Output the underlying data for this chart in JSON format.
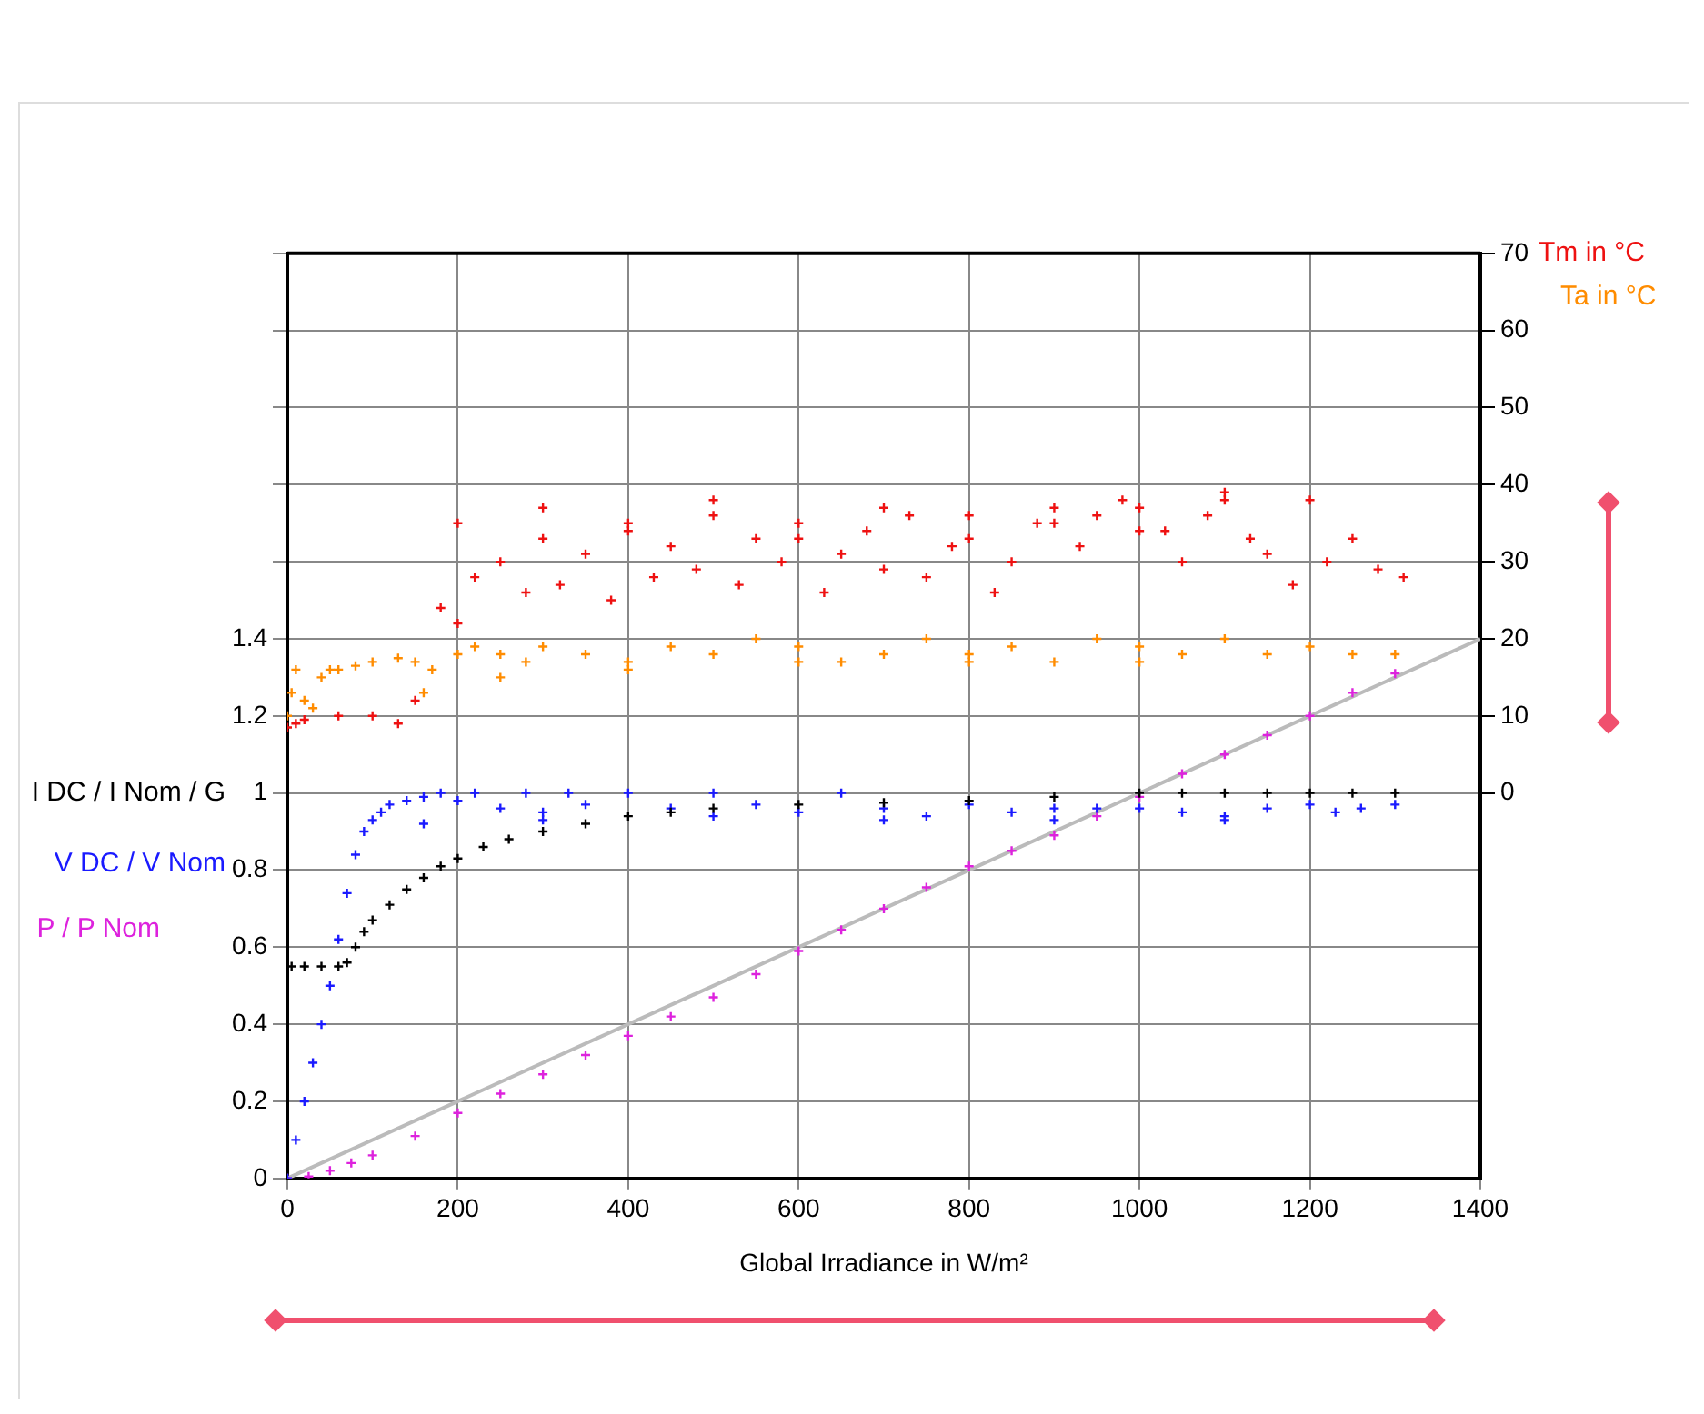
{
  "chart_data": {
    "type": "scatter",
    "xlabel": "Global Irradiance in W/m²",
    "xlim": [
      0,
      1400
    ],
    "xticks": [
      0,
      200,
      400,
      600,
      800,
      1000,
      1200,
      1400
    ],
    "ylim": [
      0,
      2.4
    ],
    "yticks": [
      0,
      0.2,
      0.4,
      0.6,
      0.8,
      1,
      1.2,
      1.4,
      {
        "value": 1.6,
        "label": null
      },
      {
        "value": 1.8,
        "label": null
      },
      {
        "value": 2,
        "label": null
      },
      {
        "value": 2.2,
        "label": null
      },
      {
        "value": 2.4,
        "label": null
      }
    ],
    "y2lim": [
      -50,
      70
    ],
    "y2ticks": [
      0,
      10,
      20,
      30,
      40,
      50,
      60,
      70
    ],
    "grid": true,
    "legend": false,
    "marker": "cross",
    "series": [
      {
        "type": "line",
        "marker": "none",
        "color": "#bbbbbb",
        "x": [
          0,
          1400
        ],
        "values": [
          0,
          1.4
        ]
      },
      {
        "name": "Tm in °C",
        "axis": "y2",
        "color": "#ee1111",
        "x": [
          0,
          10,
          20,
          60,
          100,
          130,
          150,
          180,
          200,
          220,
          250,
          280,
          300,
          320,
          350,
          380,
          400,
          430,
          450,
          480,
          500,
          530,
          550,
          580,
          600,
          630,
          650,
          680,
          700,
          730,
          750,
          780,
          800,
          830,
          850,
          880,
          900,
          930,
          950,
          980,
          1000,
          1030,
          1050,
          1080,
          1100,
          1130,
          1150,
          1180,
          1200,
          1220,
          1250,
          1280,
          1310,
          200,
          300,
          400,
          500,
          600,
          700,
          800,
          900,
          1000,
          1100
        ],
        "values": [
          8.5,
          9,
          9.5,
          10,
          10,
          9,
          12,
          24,
          22,
          28,
          30,
          26,
          33,
          27,
          31,
          25,
          35,
          28,
          32,
          29,
          36,
          27,
          33,
          30,
          35,
          26,
          31,
          34,
          29,
          36,
          28,
          32,
          33,
          26,
          30,
          35,
          37,
          32,
          36,
          38,
          37,
          34,
          30,
          36,
          38,
          33,
          31,
          27,
          38,
          30,
          33,
          29,
          28,
          35,
          37,
          34,
          38,
          33,
          37,
          36,
          35,
          34,
          39
        ]
      },
      {
        "name": "Ta in °C",
        "axis": "y2",
        "color": "#ff8c00",
        "x": [
          0,
          5,
          10,
          20,
          30,
          40,
          50,
          60,
          80,
          100,
          130,
          150,
          170,
          200,
          220,
          250,
          280,
          300,
          350,
          400,
          450,
          500,
          550,
          600,
          650,
          700,
          750,
          800,
          850,
          900,
          950,
          1000,
          1050,
          1100,
          1150,
          1200,
          1250,
          1300,
          160,
          250,
          400,
          600,
          800,
          1000
        ],
        "values": [
          10,
          13,
          16,
          12,
          11,
          15,
          16,
          16,
          16.5,
          17,
          17.5,
          17,
          16,
          18,
          19,
          18,
          17,
          19,
          18,
          17,
          19,
          18,
          20,
          19,
          17,
          18,
          20,
          18,
          19,
          17,
          20,
          19,
          18,
          20,
          18,
          19,
          18,
          18,
          13,
          15,
          16,
          17,
          17,
          17
        ]
      },
      {
        "name": "I DC / I Nom / G",
        "color": "#000000",
        "x": [
          5,
          20,
          40,
          60,
          70,
          80,
          90,
          100,
          120,
          140,
          160,
          180,
          200,
          230,
          260,
          300,
          350,
          400,
          450,
          500,
          600,
          700,
          800,
          900,
          1000,
          1050,
          1100,
          1150,
          1200,
          1250,
          1300
        ],
        "values": [
          0.55,
          0.55,
          0.55,
          0.55,
          0.56,
          0.6,
          0.64,
          0.67,
          0.71,
          0.75,
          0.78,
          0.81,
          0.83,
          0.86,
          0.88,
          0.9,
          0.92,
          0.94,
          0.95,
          0.96,
          0.97,
          0.975,
          0.98,
          0.99,
          1,
          1,
          1,
          1,
          1,
          1,
          1
        ]
      },
      {
        "name": "V DC / V Nom",
        "color": "#1a1aff",
        "x": [
          0,
          10,
          20,
          30,
          40,
          50,
          60,
          70,
          80,
          90,
          100,
          110,
          120,
          140,
          160,
          180,
          200,
          220,
          250,
          280,
          300,
          330,
          350,
          400,
          450,
          500,
          550,
          600,
          650,
          700,
          750,
          800,
          850,
          900,
          950,
          1000,
          1050,
          1100,
          1150,
          1200,
          1230,
          1260,
          1300,
          160,
          300,
          500,
          700,
          900,
          1100
        ],
        "values": [
          0,
          0.1,
          0.2,
          0.3,
          0.4,
          0.5,
          0.62,
          0.74,
          0.84,
          0.9,
          0.93,
          0.95,
          0.97,
          0.98,
          0.99,
          1,
          0.98,
          1,
          0.96,
          1,
          0.95,
          1,
          0.97,
          1,
          0.96,
          1,
          0.97,
          0.95,
          1,
          0.96,
          0.94,
          0.97,
          0.95,
          0.96,
          0.96,
          0.96,
          0.95,
          0.94,
          0.96,
          0.97,
          0.95,
          0.96,
          0.97,
          0.92,
          0.93,
          0.94,
          0.93,
          0.93,
          0.93
        ]
      },
      {
        "name": "P / P Nom",
        "color": "#dd22dd",
        "x": [
          0,
          25,
          50,
          75,
          100,
          150,
          200,
          250,
          300,
          350,
          400,
          450,
          500,
          550,
          600,
          650,
          700,
          750,
          800,
          850,
          900,
          950,
          1000,
          1050,
          1100,
          1150,
          1200,
          1250,
          1300
        ],
        "values": [
          0,
          0.005,
          0.02,
          0.04,
          0.06,
          0.11,
          0.17,
          0.22,
          0.27,
          0.32,
          0.37,
          0.42,
          0.47,
          0.53,
          0.59,
          0.645,
          0.7,
          0.755,
          0.81,
          0.85,
          0.89,
          0.94,
          0.99,
          1.05,
          1.1,
          1.15,
          1.2,
          1.26,
          1.31
        ]
      }
    ]
  }
}
